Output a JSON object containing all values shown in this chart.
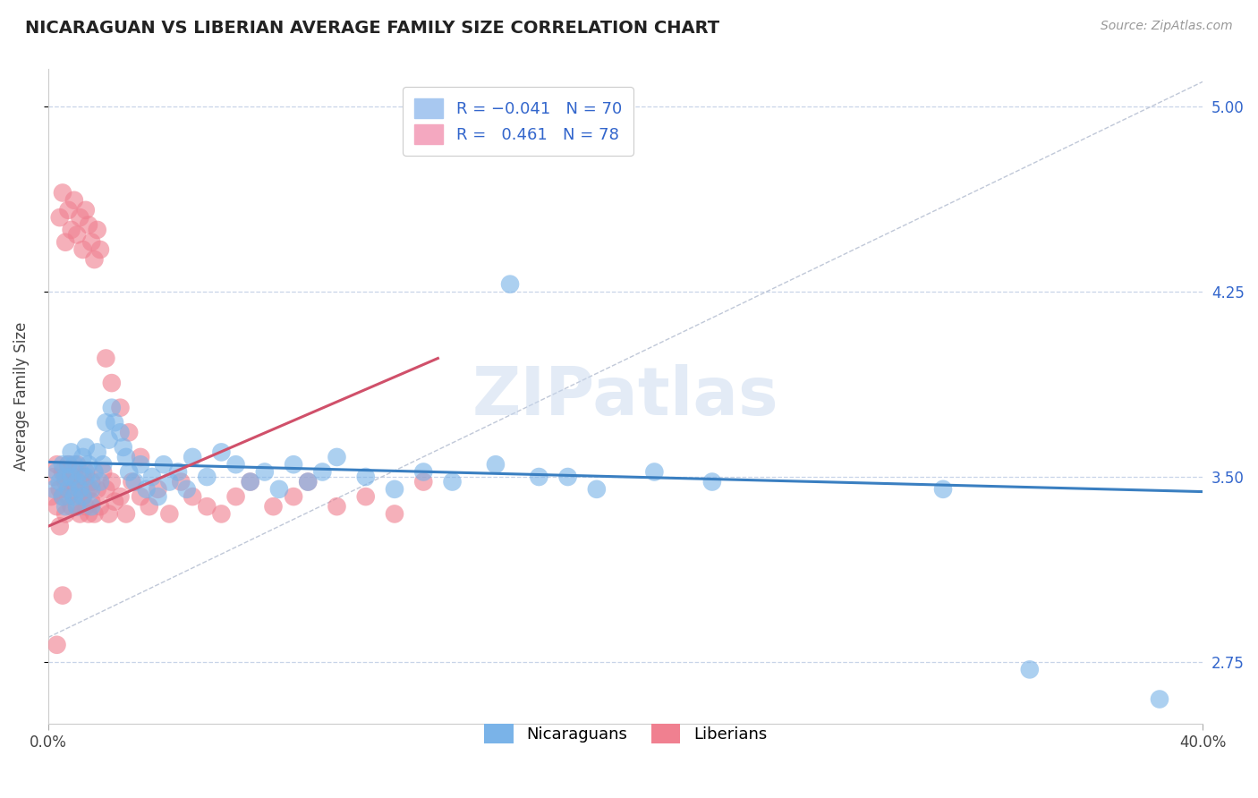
{
  "title": "NICARAGUAN VS LIBERIAN AVERAGE FAMILY SIZE CORRELATION CHART",
  "source_text": "Source: ZipAtlas.com",
  "ylabel": "Average Family Size",
  "x_min": 0.0,
  "x_max": 0.4,
  "y_min": 2.5,
  "y_max": 5.15,
  "y_ticks": [
    2.75,
    3.5,
    4.25,
    5.0
  ],
  "x_ticks": [
    0.0,
    0.4
  ],
  "x_tick_labels": [
    "0.0%",
    "40.0%"
  ],
  "nicaraguan_color": "#7ab3e8",
  "liberian_color": "#f08090",
  "background_color": "#ffffff",
  "grid_color": "#c8d4e8",
  "watermark": "ZIPatlas",
  "watermark_color": "#c8d8ee",
  "nic_x": [
    0.002,
    0.003,
    0.004,
    0.005,
    0.005,
    0.006,
    0.006,
    0.007,
    0.007,
    0.008,
    0.008,
    0.009,
    0.009,
    0.01,
    0.01,
    0.011,
    0.011,
    0.012,
    0.012,
    0.013,
    0.013,
    0.014,
    0.015,
    0.015,
    0.016,
    0.017,
    0.018,
    0.019,
    0.02,
    0.021,
    0.022,
    0.023,
    0.025,
    0.026,
    0.027,
    0.028,
    0.03,
    0.032,
    0.034,
    0.036,
    0.038,
    0.04,
    0.042,
    0.045,
    0.048,
    0.05,
    0.055,
    0.06,
    0.065,
    0.07,
    0.075,
    0.08,
    0.085,
    0.09,
    0.095,
    0.1,
    0.11,
    0.12,
    0.13,
    0.14,
    0.155,
    0.17,
    0.19,
    0.21,
    0.23,
    0.16,
    0.18,
    0.31,
    0.34,
    0.385
  ],
  "nic_y": [
    3.45,
    3.52,
    3.48,
    3.55,
    3.42,
    3.5,
    3.38,
    3.55,
    3.45,
    3.6,
    3.5,
    3.42,
    3.55,
    3.48,
    3.38,
    3.52,
    3.45,
    3.58,
    3.42,
    3.5,
    3.62,
    3.55,
    3.45,
    3.38,
    3.52,
    3.6,
    3.48,
    3.55,
    3.72,
    3.65,
    3.78,
    3.72,
    3.68,
    3.62,
    3.58,
    3.52,
    3.48,
    3.55,
    3.45,
    3.5,
    3.42,
    3.55,
    3.48,
    3.52,
    3.45,
    3.58,
    3.5,
    3.6,
    3.55,
    3.48,
    3.52,
    3.45,
    3.55,
    3.48,
    3.52,
    3.58,
    3.5,
    3.45,
    3.52,
    3.48,
    3.55,
    3.5,
    3.45,
    3.52,
    3.48,
    4.28,
    3.5,
    3.45,
    2.72,
    2.6
  ],
  "lib_x": [
    0.001,
    0.002,
    0.003,
    0.003,
    0.004,
    0.004,
    0.005,
    0.005,
    0.006,
    0.006,
    0.007,
    0.007,
    0.008,
    0.008,
    0.009,
    0.009,
    0.01,
    0.01,
    0.011,
    0.011,
    0.012,
    0.012,
    0.013,
    0.013,
    0.014,
    0.014,
    0.015,
    0.015,
    0.016,
    0.017,
    0.018,
    0.019,
    0.02,
    0.021,
    0.022,
    0.023,
    0.025,
    0.027,
    0.029,
    0.032,
    0.035,
    0.038,
    0.042,
    0.046,
    0.05,
    0.055,
    0.06,
    0.065,
    0.07,
    0.078,
    0.085,
    0.09,
    0.1,
    0.11,
    0.12,
    0.13,
    0.004,
    0.005,
    0.006,
    0.007,
    0.008,
    0.009,
    0.01,
    0.011,
    0.012,
    0.013,
    0.014,
    0.015,
    0.016,
    0.017,
    0.018,
    0.02,
    0.022,
    0.025,
    0.028,
    0.032,
    0.003,
    0.005
  ],
  "lib_y": [
    3.42,
    3.5,
    3.38,
    3.55,
    3.45,
    3.3,
    3.52,
    3.42,
    3.48,
    3.35,
    3.55,
    3.42,
    3.48,
    3.38,
    3.52,
    3.45,
    3.38,
    3.55,
    3.45,
    3.35,
    3.5,
    3.42,
    3.38,
    3.52,
    3.45,
    3.35,
    3.48,
    3.4,
    3.35,
    3.45,
    3.38,
    3.52,
    3.45,
    3.35,
    3.48,
    3.4,
    3.42,
    3.35,
    3.48,
    3.42,
    3.38,
    3.45,
    3.35,
    3.48,
    3.42,
    3.38,
    3.35,
    3.42,
    3.48,
    3.38,
    3.42,
    3.48,
    3.38,
    3.42,
    3.35,
    3.48,
    4.55,
    4.65,
    4.45,
    4.58,
    4.5,
    4.62,
    4.48,
    4.55,
    4.42,
    4.58,
    4.52,
    4.45,
    4.38,
    4.5,
    4.42,
    3.98,
    3.88,
    3.78,
    3.68,
    3.58,
    2.82,
    3.02
  ],
  "nic_trend_x": [
    0.0,
    0.4
  ],
  "nic_trend_y": [
    3.56,
    3.44
  ],
  "lib_trend_x": [
    0.0,
    0.135
  ],
  "lib_trend_y": [
    3.3,
    3.98
  ]
}
